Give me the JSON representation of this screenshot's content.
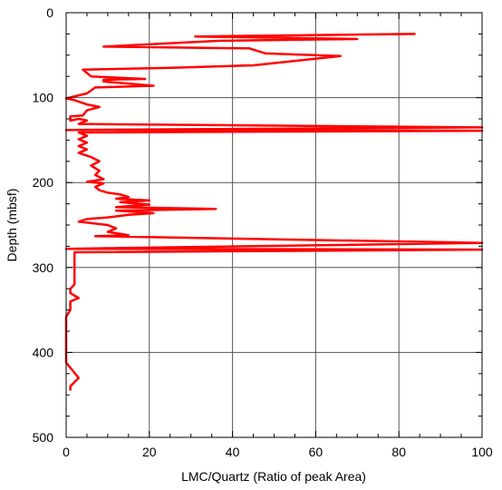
{
  "chart_data": {
    "type": "line",
    "title": "",
    "xlabel": "LMC/Quartz (Ratio of peak Area)",
    "ylabel": "Depth (mbsf)",
    "xlim": [
      0,
      100
    ],
    "ylim": [
      0,
      500
    ],
    "y_inverted": true,
    "grid": true,
    "x_ticks": [
      0,
      20,
      40,
      60,
      80,
      100
    ],
    "y_ticks": [
      0,
      100,
      200,
      300,
      400,
      500
    ],
    "x_tick_labels": [
      "0",
      "20",
      "40",
      "60",
      "80",
      "100"
    ],
    "y_tick_labels": [
      "0",
      "100",
      "200",
      "300",
      "400",
      "500"
    ],
    "series": [
      {
        "color": "#ff0000",
        "points": [
          [
            84,
            25
          ],
          [
            31,
            28
          ],
          [
            70,
            31
          ],
          [
            37,
            33
          ],
          [
            9,
            40
          ],
          [
            44,
            42
          ],
          [
            48,
            48
          ],
          [
            66,
            51
          ],
          [
            45,
            62
          ],
          [
            25,
            65
          ],
          [
            4,
            67
          ],
          [
            6,
            75
          ],
          [
            19,
            78
          ],
          [
            9,
            79
          ],
          [
            9,
            81
          ],
          [
            21,
            86
          ],
          [
            7,
            88
          ],
          [
            5,
            95
          ],
          [
            0,
            101
          ],
          [
            2,
            103
          ],
          [
            5,
            108
          ],
          [
            8,
            111
          ],
          [
            5,
            115
          ],
          [
            4,
            121
          ],
          [
            1,
            122
          ],
          [
            1,
            127
          ],
          [
            3,
            125
          ],
          [
            5,
            127
          ],
          [
            3,
            131
          ],
          [
            100,
            135
          ],
          [
            0,
            138
          ],
          [
            100,
            139
          ],
          [
            3,
            141
          ],
          [
            5,
            145
          ],
          [
            3,
            149
          ],
          [
            5,
            153
          ],
          [
            3,
            157
          ],
          [
            5,
            161
          ],
          [
            3,
            165
          ],
          [
            6,
            170
          ],
          [
            8,
            175
          ],
          [
            6,
            180
          ],
          [
            8,
            186
          ],
          [
            7,
            191
          ],
          [
            9,
            196
          ],
          [
            5,
            199
          ],
          [
            9,
            201
          ],
          [
            7,
            205
          ],
          [
            8,
            209
          ],
          [
            10,
            212
          ],
          [
            13,
            214
          ],
          [
            15,
            217
          ],
          [
            12,
            219
          ],
          [
            20,
            221
          ],
          [
            13,
            223
          ],
          [
            20,
            226
          ],
          [
            12,
            229
          ],
          [
            36,
            231
          ],
          [
            12,
            233
          ],
          [
            21,
            236
          ],
          [
            15,
            238
          ],
          [
            10,
            241
          ],
          [
            5,
            243
          ],
          [
            3,
            246
          ],
          [
            10,
            250
          ],
          [
            12,
            254
          ],
          [
            10,
            258
          ],
          [
            15,
            262
          ],
          [
            7,
            263
          ],
          [
            100,
            271
          ],
          [
            0,
            278
          ],
          [
            100,
            279
          ],
          [
            2,
            282
          ],
          [
            2,
            290
          ],
          [
            2,
            300
          ],
          [
            2,
            312
          ],
          [
            2,
            320
          ],
          [
            1,
            325
          ],
          [
            1,
            330
          ],
          [
            3,
            336
          ],
          [
            1,
            340
          ],
          [
            1,
            350
          ],
          [
            0,
            358
          ],
          [
            0,
            370
          ],
          [
            0,
            380
          ],
          [
            0,
            395
          ],
          [
            0,
            405
          ],
          [
            0,
            412
          ],
          [
            1,
            418
          ],
          [
            3,
            430
          ],
          [
            1,
            440
          ],
          [
            1,
            445
          ]
        ]
      }
    ]
  }
}
